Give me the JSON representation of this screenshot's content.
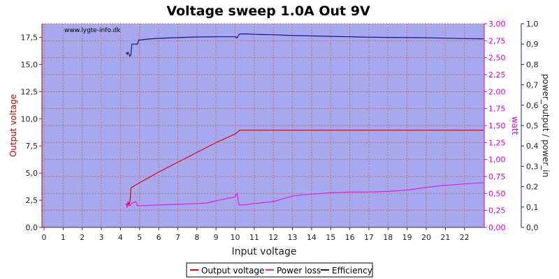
{
  "chart_data": {
    "type": "line",
    "title": "Voltage sweep 1.0A Out 9V",
    "watermark": "www.lygte-info.dk",
    "xlabel": "Input voltage",
    "xlim": [
      0,
      23
    ],
    "xticks": [
      "0",
      "1",
      "2",
      "3",
      "4",
      "5",
      "6",
      "7",
      "8",
      "9",
      "10",
      "11",
      "12",
      "13",
      "14",
      "15",
      "16",
      "17",
      "18",
      "19",
      "20",
      "21",
      "22"
    ],
    "ylabel_left": "Output voltage",
    "ylim_left": [
      0,
      18.75
    ],
    "yticks_left": [
      "0,0",
      "2,5",
      "5,0",
      "7,5",
      "10,0",
      "12,5",
      "15,0",
      "17,5"
    ],
    "ylabel_right1": "watt",
    "ylim_right1": [
      0,
      3.0
    ],
    "yticks_right1": [
      "0,00",
      "0,25",
      "0,50",
      "0,75",
      "1,00",
      "1,25",
      "1,50",
      "1,75",
      "2,00",
      "2,25",
      "2,50",
      "2,75",
      "3,00"
    ],
    "ylabel_right2": "power_output / power_in",
    "ylim_right2": [
      0,
      1.0
    ],
    "yticks_right2": [
      "0,0",
      "0,1",
      "0,2",
      "0,3",
      "0,4",
      "0,5",
      "0,6",
      "0,7",
      "0,8",
      "0,9",
      "1,0"
    ],
    "grid": true,
    "legend_position": "bottom-center",
    "colors": {
      "plot_bg": "#a8a8ee",
      "grid": "#b87878",
      "output_voltage": "#e00000",
      "power_loss": "#dd22dd",
      "efficiency": "#101870",
      "left_axis": "#cc0000",
      "right1_axis": "#cc00cc",
      "right2_axis": "#1a237e"
    },
    "series": [
      {
        "name": "Output voltage",
        "axis": "left",
        "x": [
          4.3,
          4.35,
          4.4,
          4.45,
          4.5,
          4.55,
          4.6,
          5.0,
          6.0,
          7.0,
          8.0,
          9.0,
          10.0,
          10.25,
          10.4,
          12.0,
          14.0,
          16.0,
          18.0,
          20.0,
          22.0,
          23.0
        ],
        "y": [
          2.2,
          1.9,
          2.3,
          2.1,
          2.4,
          3.6,
          3.7,
          4.1,
          5.1,
          6.0,
          6.9,
          7.8,
          8.6,
          8.95,
          8.95,
          8.95,
          8.95,
          8.95,
          8.95,
          8.95,
          8.95,
          8.95
        ]
      },
      {
        "name": "Power loss",
        "axis": "right1",
        "x": [
          4.3,
          4.35,
          4.4,
          4.5,
          4.6,
          4.8,
          4.9,
          5.0,
          6.0,
          7.0,
          8.0,
          8.5,
          9.0,
          9.5,
          10.0,
          10.1,
          10.2,
          10.3,
          10.5,
          11.0,
          12.0,
          12.5,
          13.0,
          13.5,
          14.0,
          15.0,
          16.0,
          17.0,
          18.0,
          19.0,
          20.0,
          21.0,
          22.0,
          23.0
        ],
        "y": [
          0.34,
          0.3,
          0.33,
          0.32,
          0.36,
          0.38,
          0.32,
          0.32,
          0.33,
          0.34,
          0.35,
          0.36,
          0.39,
          0.42,
          0.45,
          0.5,
          0.33,
          0.33,
          0.33,
          0.35,
          0.38,
          0.42,
          0.46,
          0.48,
          0.49,
          0.51,
          0.52,
          0.52,
          0.53,
          0.55,
          0.59,
          0.62,
          0.64,
          0.66
        ]
      },
      {
        "name": "Efficiency",
        "axis": "right2",
        "x": [
          4.3,
          4.35,
          4.4,
          4.5,
          4.55,
          4.6,
          4.9,
          4.95,
          5.0,
          5.5,
          6.0,
          7.0,
          8.0,
          9.0,
          10.0,
          10.1,
          10.2,
          10.3,
          10.6,
          11.0,
          12.0,
          13.0,
          14.0,
          15.0,
          16.0,
          17.0,
          18.0,
          19.0,
          20.0,
          21.0,
          22.0,
          23.0
        ],
        "y": [
          0.86,
          0.85,
          0.86,
          0.84,
          0.85,
          0.9,
          0.9,
          0.92,
          0.92,
          0.925,
          0.928,
          0.932,
          0.935,
          0.936,
          0.936,
          0.93,
          0.947,
          0.95,
          0.95,
          0.948,
          0.946,
          0.942,
          0.94,
          0.938,
          0.936,
          0.934,
          0.933,
          0.932,
          0.931,
          0.929,
          0.927,
          0.926
        ]
      }
    ]
  }
}
